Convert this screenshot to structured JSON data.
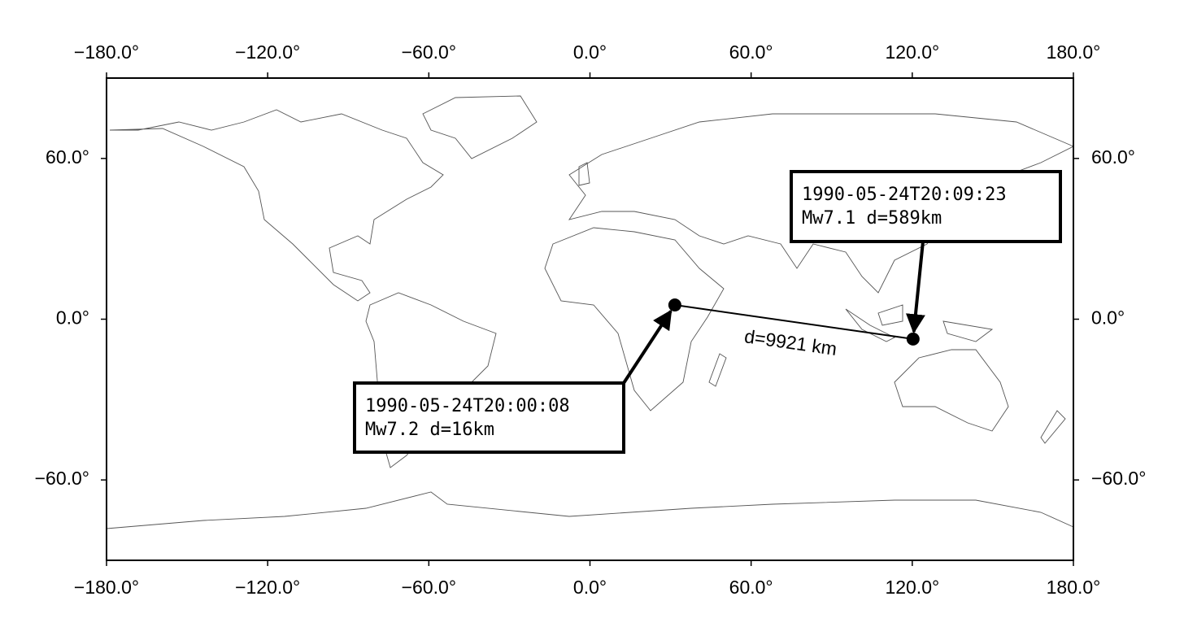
{
  "map": {
    "xlim": [
      -180,
      180
    ],
    "ylim": [
      -90,
      90
    ],
    "xticks": [
      {
        "value": -180,
        "label": "−180.0°"
      },
      {
        "value": -120,
        "label": "−120.0°"
      },
      {
        "value": -60,
        "label": "−60.0°"
      },
      {
        "value": 0,
        "label": "0.0°"
      },
      {
        "value": 60,
        "label": "60.0°"
      },
      {
        "value": 120,
        "label": "120.0°"
      },
      {
        "value": 180,
        "label": "180.0°"
      }
    ],
    "yticks": [
      {
        "value": 60,
        "label": "60.0°"
      },
      {
        "value": 0,
        "label": "0.0°"
      },
      {
        "value": -60,
        "label": "−60.0°"
      }
    ],
    "events": [
      {
        "lon": 31.6,
        "lat": 5.3,
        "time": "1990-05-24T20:00:08",
        "info": "Mw7.2 d=16km"
      },
      {
        "lon": 120.3,
        "lat": -7.4,
        "time": "1990-05-24T20:09:23",
        "info": "Mw7.1 d=589km"
      }
    ],
    "distance_label": "d=9921 km"
  }
}
